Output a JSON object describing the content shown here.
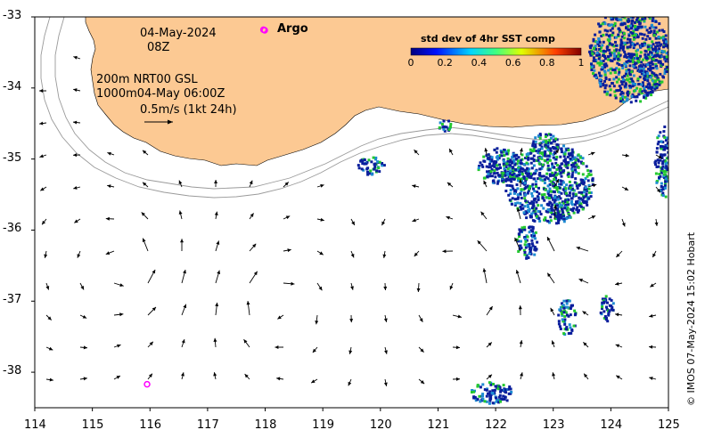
{
  "map": {
    "date": "04-May-2024",
    "time": "08Z",
    "depth_line_1": "200m  NRT00 GSL",
    "depth_line_2": "1000m04-May 06:00Z",
    "scale_text": "0.5m/s (1kt 24h)",
    "argo_label": "Argo",
    "colorbar": {
      "title": "std dev of 4hr SST comp",
      "ticks": [
        "0",
        "0.2",
        "0.4",
        "0.6",
        "0.8",
        "1"
      ],
      "range": [
        0,
        1
      ]
    },
    "credit": "© IMOS 07-May-2024 15:02 Hobart",
    "x_ticks": [
      "114",
      "115",
      "116",
      "117",
      "118",
      "119",
      "120",
      "121",
      "122",
      "123",
      "124",
      "125"
    ],
    "y_ticks": [
      "-33",
      "-34",
      "-35",
      "-36",
      "-37",
      "-38"
    ],
    "lon_range": [
      114,
      125
    ],
    "lat_range": [
      -38.5,
      -33
    ],
    "colors": {
      "land": "#fcc993",
      "argo_marker": "#ff00ff",
      "sst_low": "#0a1e9c",
      "sst_mid": "#1e8cd2",
      "sst_high": "#24c830"
    },
    "argo_floats": [
      {
        "lon": 115.95,
        "lat": -38.17
      },
      {
        "lon": 117.97,
        "lat": -33.18
      }
    ]
  }
}
